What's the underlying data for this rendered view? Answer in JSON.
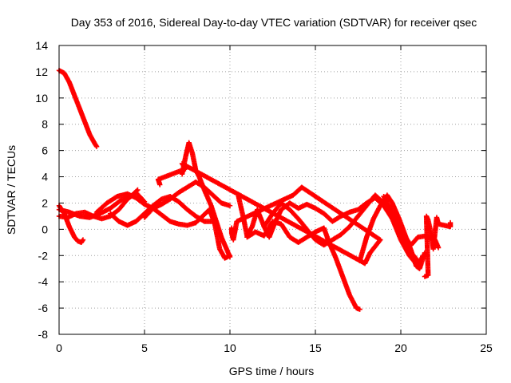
{
  "chart_data": {
    "type": "scatter",
    "title": "Day 353 of 2016, Sidereal Day-to-day VTEC variation (SDTVAR) for receiver qsec",
    "xlabel": "GPS time / hours",
    "ylabel": "SDTVAR / TECUs",
    "xlim": [
      0,
      25
    ],
    "ylim": [
      -8,
      14
    ],
    "xticks": [
      "0",
      "5",
      "10",
      "15",
      "20",
      "25"
    ],
    "yticks": [
      "-8",
      "-6",
      "-4",
      "-2",
      "0",
      "2",
      "4",
      "6",
      "8",
      "10",
      "12",
      "14"
    ],
    "grid": true,
    "marker": "+",
    "color": "#ff0000",
    "series": [
      {
        "name": "s1",
        "points": [
          [
            0.0,
            12.1
          ],
          [
            0.3,
            11.9
          ],
          [
            0.6,
            11.2
          ],
          [
            0.9,
            10.2
          ],
          [
            1.2,
            9.2
          ],
          [
            1.5,
            8.2
          ],
          [
            1.8,
            7.2
          ],
          [
            2.1,
            6.5
          ],
          [
            2.2,
            6.3
          ]
        ]
      },
      {
        "name": "s2",
        "points": [
          [
            0.0,
            1.8
          ],
          [
            0.3,
            1.2
          ],
          [
            0.6,
            0.2
          ],
          [
            0.9,
            -0.6
          ],
          [
            1.1,
            -0.9
          ],
          [
            1.3,
            -1.0
          ],
          [
            1.4,
            -0.8
          ]
        ]
      },
      {
        "name": "s3",
        "points": [
          [
            0.0,
            1.0
          ],
          [
            0.5,
            0.9
          ],
          [
            1.0,
            1.2
          ],
          [
            1.5,
            1.3
          ],
          [
            2.0,
            1.0
          ],
          [
            2.5,
            0.8
          ],
          [
            3.0,
            1.0
          ],
          [
            3.5,
            1.5
          ],
          [
            4.0,
            2.3
          ],
          [
            4.5,
            2.8
          ],
          [
            5.0,
            2.1
          ]
        ]
      },
      {
        "name": "s4",
        "points": [
          [
            0.0,
            1.5
          ],
          [
            0.6,
            1.3
          ],
          [
            1.2,
            1.0
          ],
          [
            1.8,
            0.9
          ],
          [
            2.4,
            1.2
          ],
          [
            3.0,
            1.6
          ],
          [
            3.6,
            2.2
          ],
          [
            4.2,
            2.5
          ],
          [
            4.6,
            3.0
          ]
        ]
      },
      {
        "name": "s5",
        "points": [
          [
            2.2,
            1.3
          ],
          [
            2.8,
            2.0
          ],
          [
            3.4,
            2.5
          ],
          [
            4.0,
            2.7
          ],
          [
            4.5,
            2.4
          ],
          [
            5.0,
            1.9
          ],
          [
            5.5,
            1.6
          ],
          [
            6.0,
            1.9
          ],
          [
            6.5,
            2.3
          ],
          [
            7.0,
            2.8
          ],
          [
            7.5,
            3.2
          ],
          [
            8.0,
            3.6
          ],
          [
            8.5,
            3.2
          ],
          [
            9.0,
            2.6
          ],
          [
            9.5,
            2.0
          ],
          [
            10.0,
            1.8
          ]
        ]
      },
      {
        "name": "s6",
        "points": [
          [
            3.0,
            1.2
          ],
          [
            3.5,
            0.6
          ],
          [
            4.0,
            0.3
          ],
          [
            4.5,
            0.6
          ],
          [
            5.0,
            1.2
          ],
          [
            5.5,
            1.8
          ],
          [
            6.0,
            2.3
          ],
          [
            6.5,
            2.5
          ],
          [
            7.0,
            2.1
          ],
          [
            7.5,
            1.5
          ],
          [
            8.0,
            1.0
          ],
          [
            8.5,
            0.6
          ],
          [
            9.0,
            0.6
          ]
        ]
      },
      {
        "name": "s7",
        "points": [
          [
            5.0,
            0.9
          ],
          [
            5.5,
            1.6
          ],
          [
            6.0,
            1.1
          ],
          [
            6.5,
            0.6
          ],
          [
            7.0,
            0.4
          ],
          [
            7.5,
            0.3
          ],
          [
            8.0,
            0.5
          ],
          [
            8.4,
            1.0
          ],
          [
            8.8,
            1.5
          ],
          [
            9.1,
            0.5
          ],
          [
            9.4,
            -1.5
          ],
          [
            9.7,
            -2.2
          ],
          [
            10.0,
            -2.0
          ]
        ]
      },
      {
        "name": "s8",
        "points": [
          [
            7.2,
            4.2
          ],
          [
            7.4,
            5.5
          ],
          [
            7.6,
            6.6
          ],
          [
            7.8,
            5.8
          ],
          [
            8.0,
            4.5
          ],
          [
            8.2,
            4.0
          ],
          [
            8.5,
            3.0
          ],
          [
            8.7,
            2.4
          ],
          [
            8.9,
            1.8
          ],
          [
            9.1,
            1.0
          ],
          [
            9.3,
            0.2
          ],
          [
            9.5,
            -0.6
          ],
          [
            9.8,
            -1.5
          ],
          [
            10.0,
            -2.1
          ]
        ]
      },
      {
        "name": "s9",
        "points": [
          [
            10.5,
            2.5
          ],
          [
            10.8,
            0.8
          ],
          [
            11.0,
            -0.5
          ],
          [
            11.3,
            0.2
          ],
          [
            11.6,
            1.5
          ],
          [
            12.0,
            0.2
          ],
          [
            12.3,
            -0.6
          ],
          [
            12.6,
            0.4
          ],
          [
            13.0,
            1.5
          ],
          [
            13.5,
            2.0
          ],
          [
            14.0,
            1.6
          ],
          [
            14.5,
            1.9
          ],
          [
            15.0,
            1.6
          ],
          [
            15.5,
            1.2
          ],
          [
            16.0,
            0.6
          ],
          [
            16.5,
            1.0
          ],
          [
            17.0,
            1.3
          ],
          [
            17.5,
            1.5
          ],
          [
            18.0,
            2.0
          ],
          [
            18.5,
            2.4
          ],
          [
            19.0,
            1.8
          ],
          [
            19.5,
            0.8
          ],
          [
            20.0,
            -0.8
          ],
          [
            20.5,
            -2.0
          ],
          [
            21.0,
            -2.8
          ],
          [
            21.3,
            -2.0
          ]
        ]
      },
      {
        "name": "s10",
        "points": [
          [
            11.0,
            -0.6
          ],
          [
            11.5,
            -0.2
          ],
          [
            12.0,
            -0.5
          ],
          [
            12.5,
            0.6
          ],
          [
            13.0,
            0.4
          ],
          [
            13.5,
            -0.6
          ],
          [
            14.0,
            -1.0
          ],
          [
            14.5,
            -0.6
          ],
          [
            15.0,
            -0.2
          ],
          [
            15.5,
            0.1
          ],
          [
            15.8,
            -1.0
          ],
          [
            16.2,
            -2.2
          ],
          [
            16.6,
            -3.6
          ],
          [
            17.0,
            -5.0
          ],
          [
            17.4,
            -6.0
          ],
          [
            17.6,
            -6.1
          ]
        ]
      },
      {
        "name": "s11",
        "points": [
          [
            12.0,
            0.2
          ],
          [
            12.5,
            1.2
          ],
          [
            13.0,
            2.0
          ],
          [
            13.5,
            1.5
          ],
          [
            14.0,
            0.8
          ],
          [
            14.5,
            0.0
          ],
          [
            15.0,
            -0.8
          ],
          [
            15.5,
            -1.2
          ],
          [
            16.0,
            -0.8
          ],
          [
            16.5,
            -0.4
          ],
          [
            17.0,
            0.2
          ],
          [
            17.5,
            1.0
          ],
          [
            18.0,
            1.8
          ],
          [
            18.5,
            2.6
          ],
          [
            19.0,
            2.0
          ],
          [
            19.5,
            0.8
          ],
          [
            20.0,
            -0.6
          ],
          [
            20.5,
            -1.6
          ],
          [
            21.0,
            -2.4
          ]
        ]
      },
      {
        "name": "s12",
        "points": [
          [
            17.6,
            -2.4
          ],
          [
            18.0,
            -0.6
          ],
          [
            18.4,
            0.8
          ],
          [
            18.8,
            1.8
          ],
          [
            19.2,
            2.6
          ],
          [
            19.5,
            2.0
          ],
          [
            19.9,
            0.8
          ],
          [
            20.3,
            -0.6
          ],
          [
            20.6,
            -1.6
          ],
          [
            20.9,
            -2.8
          ],
          [
            21.1,
            -3.0
          ],
          [
            21.4,
            -1.8
          ]
        ]
      },
      {
        "name": "s13",
        "points": [
          [
            19.0,
            2.5
          ],
          [
            19.4,
            1.5
          ],
          [
            19.8,
            0.5
          ],
          [
            20.2,
            -0.5
          ],
          [
            20.6,
            -1.2
          ],
          [
            21.0,
            -0.6
          ],
          [
            21.5,
            -0.5
          ],
          [
            22.0,
            -0.8
          ],
          [
            22.2,
            -1.4
          ]
        ]
      },
      {
        "name": "s14",
        "points": [
          [
            21.4,
            -3.6
          ],
          [
            21.6,
            -3.5
          ],
          [
            21.5,
            1.0
          ],
          [
            21.6,
            0.7
          ],
          [
            21.8,
            -0.5
          ],
          [
            21.9,
            -1.5
          ],
          [
            22.1,
            0.9
          ],
          [
            22.2,
            0.4
          ],
          [
            22.9,
            0.2
          ],
          [
            22.9,
            0.5
          ]
        ]
      },
      {
        "name": "s15",
        "points": [
          [
            10.1,
            0.1
          ],
          [
            10.1,
            -0.3
          ],
          [
            10.2,
            -0.8
          ],
          [
            10.4,
            0.6
          ],
          [
            13.7,
            2.6
          ],
          [
            14.2,
            3.2
          ],
          [
            18.8,
            -0.8
          ],
          [
            18.2,
            -1.8
          ],
          [
            17.9,
            -2.6
          ],
          [
            7.2,
            5.0
          ],
          [
            7.4,
            4.6
          ],
          [
            5.8,
            3.8
          ],
          [
            5.9,
            3.4
          ]
        ]
      }
    ]
  }
}
